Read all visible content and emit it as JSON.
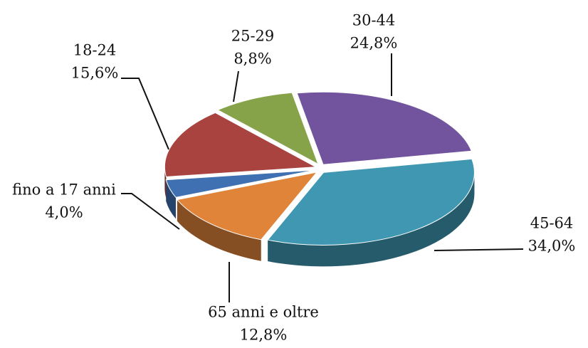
{
  "chart_data": {
    "type": "pie",
    "categories": [
      "30-44",
      "45-64",
      "65 anni e oltre",
      "fino a 17 anni",
      "18-24",
      "25-29"
    ],
    "values": [
      24.8,
      34.0,
      12.8,
      4.0,
      15.6,
      8.8
    ],
    "value_labels": [
      "24,8%",
      "34,0%",
      "12,8%",
      "4,0%",
      "15,6%",
      "8,8%"
    ],
    "colors": [
      "#72549e",
      "#3f97b2",
      "#e0843a",
      "#3e70b2",
      "#a8433f",
      "#86a34a"
    ]
  }
}
